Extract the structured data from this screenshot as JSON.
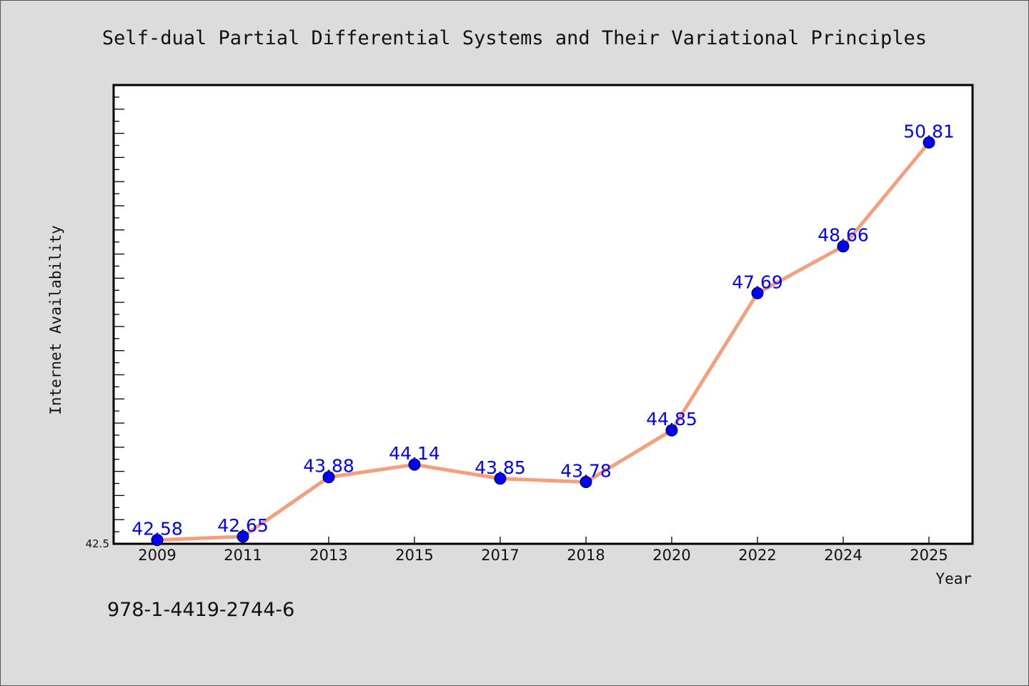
{
  "chart_data": {
    "type": "line",
    "title": "Self-dual Partial Differential Systems and Their Variational Principles",
    "xlabel": "Year",
    "ylabel": "Internet Availability",
    "categories": [
      "2009",
      "2011",
      "2013",
      "2015",
      "2017",
      "2018",
      "2020",
      "2022",
      "2024",
      "2025"
    ],
    "series": [
      {
        "values": [
          42.58,
          42.65,
          43.88,
          44.14,
          43.85,
          43.78,
          44.85,
          47.69,
          48.66,
          50.81
        ],
        "labels": [
          "42.58",
          "42.65",
          "43.88",
          "44.14",
          "43.85",
          "43.78",
          "44.85",
          "47.69",
          "48.66",
          "50.81"
        ]
      }
    ],
    "ylim": [
      42.5,
      52
    ],
    "y_tick_labels": [
      "42.5"
    ],
    "grid": false,
    "line_color": "#f4a07f",
    "marker_color": "#0000ff",
    "label_color": "#0000ff",
    "background_color": "#dcdcdc",
    "plot_background": "#ffffff"
  },
  "footer_text": "978-1-4419-2744-6"
}
